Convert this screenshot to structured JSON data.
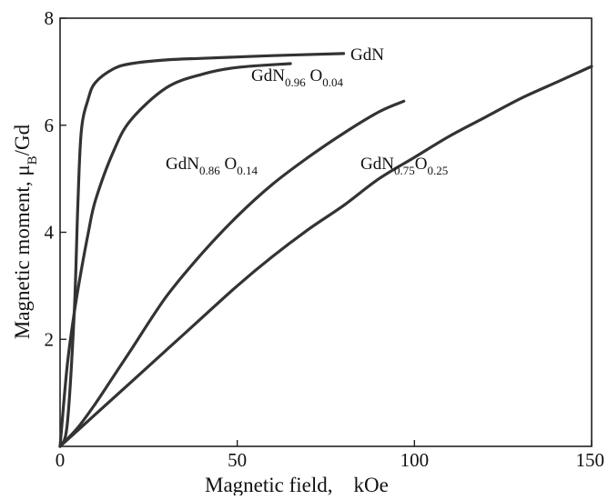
{
  "chart_data": {
    "type": "line",
    "title": "",
    "xlabel": "Magnetic field,    kOe",
    "ylabel": "Magnetic moment,  μ_B/Gd",
    "xlim": [
      0,
      150
    ],
    "ylim": [
      0,
      8
    ],
    "x_ticks": [
      0,
      50,
      100,
      150
    ],
    "x_tick_labels": [
      "0",
      "50",
      "100",
      "150"
    ],
    "y_ticks": [
      2,
      4,
      6,
      8
    ],
    "y_tick_labels": [
      "2",
      "4",
      "6",
      "8"
    ],
    "grid": false,
    "legend": "none",
    "series": [
      {
        "name": "GdN",
        "label_parts": [
          {
            "t": "GdN",
            "sub": false
          }
        ],
        "x": [
          0,
          2,
          4,
          5,
          6,
          8,
          10,
          15,
          20,
          30,
          40,
          60,
          80
        ],
        "y": [
          0,
          0.4,
          2.5,
          4.5,
          5.9,
          6.5,
          6.8,
          7.05,
          7.15,
          7.22,
          7.25,
          7.3,
          7.34
        ]
      },
      {
        "name": "GdN0.96 O0.04",
        "label_parts": [
          {
            "t": "GdN",
            "sub": false
          },
          {
            "t": "0.96",
            "sub": true
          },
          {
            "t": "  O",
            "sub": false
          },
          {
            "t": "0.04",
            "sub": true
          }
        ],
        "x": [
          0,
          2,
          4,
          6,
          8,
          10,
          15,
          20,
          30,
          40,
          50,
          65
        ],
        "y": [
          0,
          1.5,
          2.5,
          3.3,
          4.0,
          4.6,
          5.5,
          6.1,
          6.7,
          6.95,
          7.08,
          7.15
        ]
      },
      {
        "name": "GdN0.86 O0.14",
        "label_parts": [
          {
            "t": "GdN",
            "sub": false
          },
          {
            "t": "0.86",
            "sub": true
          },
          {
            "t": "  O",
            "sub": false
          },
          {
            "t": "0.14",
            "sub": true
          }
        ],
        "x": [
          0,
          5,
          10,
          15,
          20,
          30,
          40,
          50,
          60,
          70,
          80,
          90,
          97
        ],
        "y": [
          0,
          0.35,
          0.8,
          1.3,
          1.8,
          2.8,
          3.6,
          4.3,
          4.9,
          5.4,
          5.85,
          6.25,
          6.45
        ]
      },
      {
        "name": "GdN0.75 O0.25",
        "label_parts": [
          {
            "t": "GdN",
            "sub": false
          },
          {
            "t": "0.75",
            "sub": true
          },
          {
            "t": "O",
            "sub": false
          },
          {
            "t": "0.25",
            "sub": true
          }
        ],
        "x": [
          0,
          10,
          20,
          30,
          40,
          50,
          60,
          70,
          80,
          90,
          100,
          110,
          120,
          130,
          140,
          150
        ],
        "y": [
          0,
          0.6,
          1.2,
          1.8,
          2.4,
          3.0,
          3.55,
          4.05,
          4.5,
          5.0,
          5.4,
          5.8,
          6.15,
          6.5,
          6.8,
          7.1
        ]
      }
    ]
  }
}
